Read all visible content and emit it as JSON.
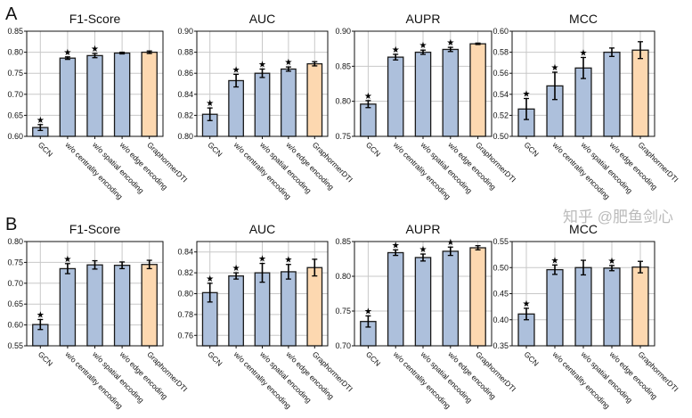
{
  "colors": {
    "bar": "#adc0dc",
    "highlight": "#fdd8b0",
    "edge": "#1a1a1a",
    "grid": "#c8c8c8"
  },
  "watermark": "知乎 @肥鱼剑心",
  "chart_data": [
    {
      "panel": "A",
      "type": "bar",
      "title": "F1-Score",
      "categories": [
        "GCN",
        "w/o centrality encoding",
        "w/o spatial encoding",
        "w/o edge encoding",
        "GraphormerDTI"
      ],
      "values": [
        0.621,
        0.786,
        0.792,
        0.798,
        0.8
      ],
      "errors": [
        0.007,
        0.003,
        0.005,
        0.002,
        0.003
      ],
      "significant": [
        true,
        true,
        true,
        false,
        false
      ],
      "ylim": [
        0.6,
        0.85
      ],
      "yticks": [
        "0.60",
        "0.65",
        "0.70",
        "0.75",
        "0.80",
        "0.85"
      ],
      "grid": true
    },
    {
      "panel": "A",
      "type": "bar",
      "title": "AUC",
      "categories": [
        "GCN",
        "w/o centrality encoding",
        "w/o spatial encoding",
        "w/o edge encoding",
        "GraphormerDTI"
      ],
      "values": [
        0.821,
        0.853,
        0.86,
        0.864,
        0.869
      ],
      "errors": [
        0.006,
        0.006,
        0.004,
        0.002,
        0.002
      ],
      "significant": [
        true,
        true,
        true,
        true,
        false
      ],
      "ylim": [
        0.8,
        0.9
      ],
      "yticks": [
        "0.80",
        "0.82",
        "0.84",
        "0.86",
        "0.88",
        "0.90"
      ],
      "grid": true
    },
    {
      "panel": "A",
      "type": "bar",
      "title": "AUPR",
      "categories": [
        "GCN",
        "w/o centrality encoding",
        "w/o spatial encoding",
        "w/o edge encoding",
        "GraphormerDTI"
      ],
      "values": [
        0.796,
        0.863,
        0.87,
        0.874,
        0.882
      ],
      "errors": [
        0.005,
        0.004,
        0.003,
        0.003,
        0.001
      ],
      "significant": [
        true,
        true,
        true,
        true,
        false
      ],
      "ylim": [
        0.75,
        0.9
      ],
      "yticks": [
        "0.75",
        "0.80",
        "0.85",
        "0.90"
      ],
      "grid": true
    },
    {
      "panel": "A",
      "type": "bar",
      "title": "MCC",
      "categories": [
        "GCN",
        "w/o centrality encoding",
        "w/o spatial encoding",
        "w/o edge encoding",
        "GraphormerDTI"
      ],
      "values": [
        0.526,
        0.548,
        0.565,
        0.58,
        0.582
      ],
      "errors": [
        0.01,
        0.013,
        0.01,
        0.004,
        0.008
      ],
      "significant": [
        true,
        true,
        true,
        false,
        false
      ],
      "ylim": [
        0.5,
        0.6
      ],
      "yticks": [
        "0.50",
        "0.52",
        "0.54",
        "0.56",
        "0.58",
        "0.60"
      ],
      "grid": true
    },
    {
      "panel": "B",
      "type": "bar",
      "title": "F1-Score",
      "categories": [
        "GCN",
        "w/o centrality encoding",
        "w/o spatial encoding",
        "w/o edge encoding",
        "GraphormerDTI"
      ],
      "values": [
        0.601,
        0.735,
        0.744,
        0.743,
        0.745
      ],
      "errors": [
        0.012,
        0.012,
        0.01,
        0.008,
        0.01
      ],
      "significant": [
        true,
        true,
        false,
        false,
        false
      ],
      "ylim": [
        0.55,
        0.8
      ],
      "yticks": [
        "0.55",
        "0.60",
        "0.65",
        "0.70",
        "0.75",
        "0.80"
      ],
      "grid": true
    },
    {
      "panel": "B",
      "type": "bar",
      "title": "AUC",
      "categories": [
        "GCN",
        "w/o centrality encoding",
        "w/o spatial encoding",
        "w/o edge encoding",
        "GraphormerDTI"
      ],
      "values": [
        0.801,
        0.817,
        0.82,
        0.821,
        0.825
      ],
      "errors": [
        0.009,
        0.003,
        0.009,
        0.007,
        0.008
      ],
      "significant": [
        true,
        true,
        true,
        true,
        false
      ],
      "ylim": [
        0.75,
        0.85
      ],
      "yticks": [
        "0.76",
        "0.78",
        "0.80",
        "0.82",
        "0.84"
      ],
      "grid": true
    },
    {
      "panel": "B",
      "type": "bar",
      "title": "AUPR",
      "categories": [
        "GCN",
        "w/o centrality encoding",
        "w/o spatial encoding",
        "w/o edge encoding",
        "GraphormerDTI"
      ],
      "values": [
        0.735,
        0.834,
        0.827,
        0.836,
        0.841
      ],
      "errors": [
        0.008,
        0.004,
        0.005,
        0.006,
        0.003
      ],
      "significant": [
        true,
        true,
        true,
        true,
        false
      ],
      "ylim": [
        0.7,
        0.85
      ],
      "yticks": [
        "0.70",
        "0.75",
        "0.80",
        "0.85"
      ],
      "grid": true
    },
    {
      "panel": "B",
      "type": "bar",
      "title": "MCC",
      "categories": [
        "GCN",
        "w/o centrality encoding",
        "w/o spatial encoding",
        "w/o edge encoding",
        "GraphormerDTI"
      ],
      "values": [
        0.411,
        0.496,
        0.5,
        0.499,
        0.501
      ],
      "errors": [
        0.011,
        0.009,
        0.014,
        0.005,
        0.011
      ],
      "significant": [
        true,
        true,
        false,
        true,
        false
      ],
      "ylim": [
        0.35,
        0.55
      ],
      "yticks": [
        "0.35",
        "0.40",
        "0.45",
        "0.50",
        "0.55"
      ],
      "grid": true
    }
  ]
}
